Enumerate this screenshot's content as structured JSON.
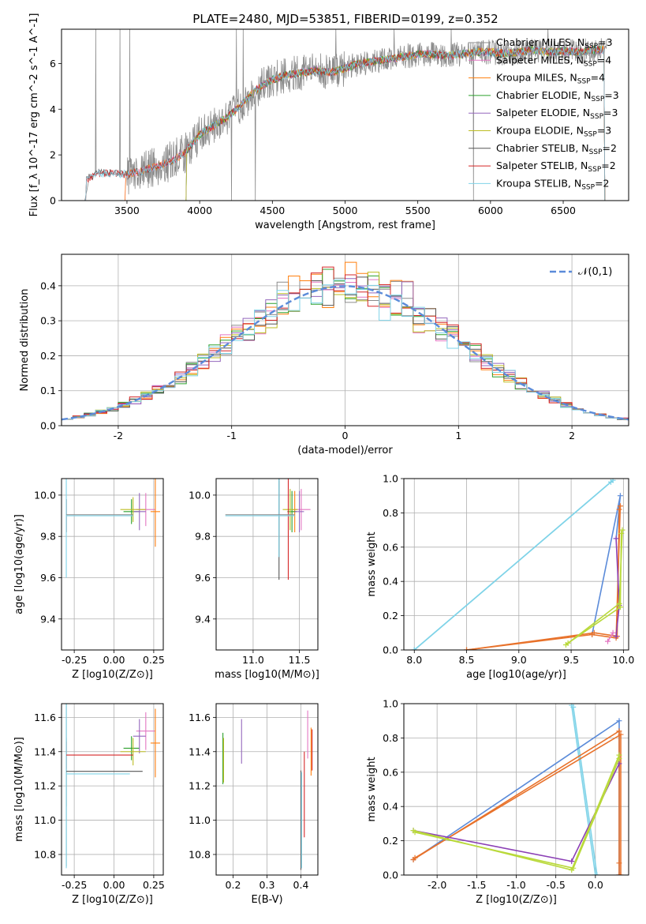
{
  "figure_title": "PLATE=2480, MJD=53851, FIBERID=0199, z=0.352",
  "colors": {
    "Chabrier MILES": "#8c8c8c",
    "Salpeter MILES": "#e377c2",
    "Kroupa MILES": "#ff7f0e",
    "Chabrier ELODIE": "#2ca02c",
    "Salpeter ELODIE": "#9467bd",
    "Kroupa ELODIE": "#bcbd22",
    "Chabrier STELIB": "#555555",
    "Salpeter STELIB": "#d62728",
    "Kroupa STELIB": "#7fd3e8",
    "normal_curve": "#5b8bd9",
    "weights_blue": "#5b8bd9",
    "weights_orange": "#e8722b",
    "weights_purple": "#8b3fb5",
    "weights_yellow": "#b9d93a",
    "weights_cyan": "#7fd3e8"
  },
  "chart_data": [
    {
      "id": "spectrum",
      "type": "line",
      "title": "PLATE=2480, MJD=53851, FIBERID=0199, z=0.352",
      "xlabel": "wavelength [Angstrom, rest frame]",
      "ylabel": "Flux [f_λ 10^-17 erg cm^-2 s^-1 A^-1]",
      "xlim": [
        3050,
        6950
      ],
      "ylim": [
        0,
        7.5
      ],
      "xticks": [
        3500,
        4000,
        4500,
        5000,
        5500,
        6000,
        6500
      ],
      "yticks": [
        0,
        2,
        4,
        6
      ],
      "grid": false,
      "legend_position": "top-right",
      "legend": [
        "Chabrier MILES, N_SSP=3",
        "Salpeter MILES, N_SSP=4",
        "Kroupa MILES, N_SSP=4",
        "Chabrier ELODIE, N_SSP=3",
        "Salpeter ELODIE, N_SSP=3",
        "Kroupa ELODIE, N_SSP=3",
        "Chabrier STELIB, N_SSP=2",
        "Salpeter STELIB, N_SSP=2",
        "Kroupa STELIB, N_SSP=2"
      ],
      "data_start_angstrom": 3210,
      "data_end_angstrom": 6800,
      "continuum": {
        "x": [
          3210,
          3300,
          3400,
          3500,
          3600,
          3700,
          3800,
          3900,
          4000,
          4100,
          4200,
          4300,
          4400,
          4500,
          4600,
          4700,
          4800,
          4900,
          5000,
          5100,
          5200,
          5300,
          5400,
          5500,
          5600,
          5700,
          5800,
          5900,
          6000,
          6100,
          6200,
          6300,
          6400,
          6500,
          6600,
          6700,
          6800
        ],
        "y": [
          0.9,
          1.2,
          1.2,
          1.15,
          1.3,
          1.5,
          1.7,
          2.1,
          2.9,
          3.3,
          3.7,
          4.3,
          4.9,
          5.3,
          5.5,
          5.6,
          5.7,
          5.6,
          5.8,
          6.0,
          6.1,
          6.2,
          6.3,
          6.4,
          6.4,
          6.35,
          6.4,
          6.5,
          6.5,
          6.45,
          6.5,
          6.6,
          6.5,
          6.55,
          6.5,
          6.6,
          6.6
        ]
      }
    },
    {
      "id": "residuals",
      "type": "line",
      "xlabel": "(data-model)/error",
      "ylabel": "Normed distribution",
      "xlim": [
        -2.5,
        2.5
      ],
      "ylim": [
        0,
        0.49
      ],
      "xticks": [
        -2,
        -1,
        0,
        1,
        2
      ],
      "yticks": [
        0.0,
        0.1,
        0.2,
        0.3,
        0.4
      ],
      "grid": true,
      "legend_position": "top-right",
      "legend": [
        "𝒩(0,1)"
      ],
      "bin_width": 0.1
    },
    {
      "id": "age_vs_Z",
      "type": "scatter",
      "xlabel": "Z [log10(Z/Z⊙)]",
      "ylabel": "age  [log10(age/yr)]",
      "xlim": [
        -0.33,
        0.31
      ],
      "ylim": [
        9.25,
        10.08
      ],
      "xticks": [
        -0.25,
        0.0,
        0.25
      ],
      "yticks": [
        9.4,
        9.6,
        9.8,
        10.0
      ],
      "grid": true,
      "points": [
        {
          "x": -0.3,
          "y": 9.9,
          "xerr": 0.0,
          "yerr": 0.08,
          "series": "Chabrier MILES"
        },
        {
          "x": 0.2,
          "y": 9.93,
          "xerr": 0.06,
          "yerr": 0.08,
          "series": "Salpeter MILES"
        },
        {
          "x": 0.26,
          "y": 9.92,
          "xerr": 0.03,
          "yerr": 0.17,
          "series": "Kroupa MILES"
        },
        {
          "x": 0.11,
          "y": 9.92,
          "xerr": 0.05,
          "yerr": 0.06,
          "series": "Chabrier ELODIE"
        },
        {
          "x": 0.16,
          "y": 9.92,
          "xerr": 0.04,
          "yerr": 0.09,
          "series": "Salpeter ELODIE"
        },
        {
          "x": 0.12,
          "y": 9.93,
          "xerr": 0.08,
          "yerr": 0.06,
          "series": "Kroupa ELODIE"
        },
        {
          "x": -0.3,
          "y": 9.9,
          "xerr": 0.0,
          "yerr": 0.08,
          "series": "Chabrier STELIB"
        },
        {
          "x": -0.3,
          "y": 9.9,
          "xerr": 0.0,
          "yerr": 0.08,
          "series": "Salpeter STELIB"
        },
        {
          "x": -0.3,
          "y": 9.9,
          "xerr": 0.0,
          "yerr": 0.3,
          "series": "Kroupa STELIB"
        }
      ]
    },
    {
      "id": "age_vs_mass",
      "type": "scatter",
      "xlabel": "mass [log10(M/M⊙)]",
      "ylabel": "",
      "xlim": [
        10.6,
        11.7
      ],
      "ylim": [
        9.25,
        10.08
      ],
      "xticks": [
        11.0,
        11.5
      ],
      "yticks": [
        9.4,
        9.6,
        9.8,
        10.0
      ],
      "grid": true,
      "points": [
        {
          "x": 11.28,
          "y": 9.9,
          "xerr": 0.0,
          "yerr": 0.2,
          "series": "Chabrier MILES"
        },
        {
          "x": 11.52,
          "y": 9.93,
          "xerr": 0.1,
          "yerr": 0.1,
          "series": "Salpeter MILES"
        },
        {
          "x": 11.45,
          "y": 9.92,
          "xerr": 0.02,
          "yerr": 0.1,
          "series": "Kroupa MILES"
        },
        {
          "x": 11.42,
          "y": 9.92,
          "xerr": 0.05,
          "yerr": 0.1,
          "series": "Chabrier ELODIE"
        },
        {
          "x": 11.5,
          "y": 9.92,
          "xerr": 0.05,
          "yerr": 0.1,
          "series": "Salpeter ELODIE"
        },
        {
          "x": 11.4,
          "y": 9.93,
          "xerr": 0.08,
          "yerr": 0.1,
          "series": "Kroupa ELODIE"
        },
        {
          "x": 11.28,
          "y": 9.9,
          "xerr": 0.0,
          "yerr": 0.31,
          "series": "Chabrier STELIB"
        },
        {
          "x": 11.38,
          "y": 9.9,
          "xerr": 0.0,
          "yerr": 0.31,
          "series": "Salpeter STELIB"
        },
        {
          "x": 11.28,
          "y": 9.9,
          "xerr": 0.0,
          "yerr": 0.2,
          "series": "Kroupa STELIB"
        }
      ]
    },
    {
      "id": "weights_vs_age",
      "type": "line",
      "xlabel": "age  [log10(age/yr)]",
      "ylabel": "mass weight",
      "xlim": [
        7.9,
        10.05
      ],
      "ylim": [
        0,
        1.0
      ],
      "xticks": [
        8.0,
        8.5,
        9.0,
        9.5,
        10.0
      ],
      "yticks": [
        0.0,
        0.2,
        0.4,
        0.6,
        0.8,
        1.0
      ],
      "grid": true,
      "series": [
        {
          "color": "weights_cyan",
          "x": [
            8.0,
            9.9
          ],
          "y": [
            0.0,
            0.99
          ]
        },
        {
          "color": "weights_cyan",
          "x": [
            8.0,
            9.88
          ],
          "y": [
            0.0,
            0.98
          ]
        },
        {
          "color": "weights_blue",
          "x": [
            9.7,
            9.97,
            9.93
          ],
          "y": [
            0.09,
            0.9,
            0.65
          ]
        },
        {
          "color": "weights_orange",
          "x": [
            8.5,
            9.7,
            9.93,
            9.97
          ],
          "y": [
            0.0,
            0.09,
            0.07,
            0.84
          ]
        },
        {
          "color": "weights_orange",
          "x": [
            8.5,
            9.72,
            9.94,
            9.96
          ],
          "y": [
            0.0,
            0.1,
            0.08,
            0.82
          ]
        },
        {
          "color": "weights_purple",
          "x": [
            9.93,
            9.96,
            9.93
          ],
          "y": [
            0.65,
            0.26,
            0.08
          ]
        },
        {
          "color": "weights_yellow",
          "x": [
            9.45,
            9.96,
            9.99
          ],
          "y": [
            0.03,
            0.27,
            0.7
          ]
        },
        {
          "color": "weights_yellow",
          "x": [
            9.47,
            9.97,
            9.98
          ],
          "y": [
            0.04,
            0.25,
            0.68
          ]
        },
        {
          "color": "Salpeter MILES",
          "x": [
            9.85,
            9.9
          ],
          "y": [
            0.05,
            0.1
          ]
        }
      ]
    },
    {
      "id": "mass_vs_Z",
      "type": "scatter",
      "xlabel": "Z [log10(Z/Z⊙)]",
      "ylabel": "mass [log10(M/M⊙)]",
      "xlim": [
        -0.33,
        0.31
      ],
      "ylim": [
        10.68,
        11.68
      ],
      "xticks": [
        -0.25,
        0.0,
        0.25
      ],
      "yticks": [
        10.8,
        11.0,
        11.2,
        11.4,
        11.6
      ],
      "grid": true,
      "points": [
        {
          "x": -0.3,
          "y": 11.28,
          "xerr": 0.0,
          "yerr": 0.2,
          "series": "Chabrier MILES"
        },
        {
          "x": 0.2,
          "y": 11.52,
          "xerr": 0.06,
          "yerr": 0.11,
          "series": "Salpeter MILES"
        },
        {
          "x": 0.26,
          "y": 11.45,
          "xerr": 0.03,
          "yerr": 0.2,
          "series": "Kroupa MILES"
        },
        {
          "x": 0.11,
          "y": 11.42,
          "xerr": 0.05,
          "yerr": 0.07,
          "series": "Chabrier ELODIE"
        },
        {
          "x": 0.16,
          "y": 11.49,
          "xerr": 0.04,
          "yerr": 0.1,
          "series": "Salpeter ELODIE"
        },
        {
          "x": 0.12,
          "y": 11.4,
          "xerr": 0.08,
          "yerr": 0.08,
          "series": "Kroupa ELODIE"
        },
        {
          "x": -0.3,
          "y": 11.28,
          "xerr": 0.0,
          "yerr": 0.55,
          "series": "Chabrier STELIB"
        },
        {
          "x": -0.3,
          "y": 11.38,
          "xerr": 0.0,
          "yerr": 0.08,
          "series": "Salpeter STELIB"
        },
        {
          "x": -0.3,
          "y": 11.27,
          "xerr": 0.0,
          "yerr": 0.55,
          "series": "Kroupa STELIB"
        }
      ]
    },
    {
      "id": "mass_vs_ebv",
      "type": "scatter",
      "xlabel": "E(B-V)",
      "ylabel": "",
      "xlim": [
        0.15,
        0.45
      ],
      "ylim": [
        10.68,
        11.68
      ],
      "xticks": [
        0.2,
        0.3,
        0.4
      ],
      "yticks": [
        10.8,
        11.0,
        11.2,
        11.4,
        11.6
      ],
      "grid": true,
      "points": [
        {
          "x": 0.17,
          "y": 11.36,
          "xerr": 0.0,
          "yerr": 0.15,
          "series": "Chabrier ELODIE"
        },
        {
          "x": 0.172,
          "y": 11.35,
          "xerr": 0.0,
          "yerr": 0.13,
          "series": "Kroupa ELODIE"
        },
        {
          "x": 0.225,
          "y": 11.46,
          "xerr": 0.0,
          "yerr": 0.13,
          "series": "Salpeter ELODIE"
        },
        {
          "x": 0.4,
          "y": 11.0,
          "xerr": 0.0,
          "yerr": 0.29,
          "series": "Chabrier STELIB"
        },
        {
          "x": 0.402,
          "y": 11.0,
          "xerr": 0.0,
          "yerr": 0.28,
          "series": "Kroupa STELIB"
        },
        {
          "x": 0.41,
          "y": 11.15,
          "xerr": 0.0,
          "yerr": 0.25,
          "series": "Salpeter STELIB"
        },
        {
          "x": 0.42,
          "y": 11.5,
          "xerr": 0.0,
          "yerr": 0.14,
          "series": "Salpeter MILES"
        },
        {
          "x": 0.43,
          "y": 11.4,
          "xerr": 0.0,
          "yerr": 0.14,
          "series": "Kroupa MILES"
        },
        {
          "x": 0.433,
          "y": 11.41,
          "xerr": 0.0,
          "yerr": 0.12,
          "series": "Salpeter STELIB"
        }
      ]
    },
    {
      "id": "weights_vs_Z",
      "type": "line",
      "xlabel": "Z [log10(Z/Z⊙)]",
      "ylabel": "mass weight",
      "xlim": [
        -2.42,
        0.42
      ],
      "ylim": [
        0,
        1.0
      ],
      "xticks": [
        -2.0,
        -1.5,
        -1.0,
        -0.5,
        0.0
      ],
      "yticks": [
        0.0,
        0.2,
        0.4,
        0.6,
        0.8,
        1.0
      ],
      "grid": true,
      "series": [
        {
          "color": "weights_cyan",
          "x": [
            -0.3,
            0.0
          ],
          "y": [
            0.99,
            0.0
          ]
        },
        {
          "color": "weights_cyan",
          "x": [
            -0.28,
            0.02
          ],
          "y": [
            0.98,
            0.0
          ]
        },
        {
          "color": "weights_blue",
          "x": [
            -2.3,
            0.3,
            0.3
          ],
          "y": [
            0.09,
            0.9,
            0.0
          ]
        },
        {
          "color": "weights_orange",
          "x": [
            -2.3,
            0.3,
            0.3,
            0.3
          ],
          "y": [
            0.09,
            0.84,
            0.07,
            0.0
          ]
        },
        {
          "color": "weights_orange",
          "x": [
            -2.28,
            0.32,
            0.32
          ],
          "y": [
            0.1,
            0.82,
            0.0
          ]
        },
        {
          "color": "weights_purple",
          "x": [
            -2.3,
            -0.3,
            0.3
          ],
          "y": [
            0.26,
            0.08,
            0.65
          ]
        },
        {
          "color": "weights_yellow",
          "x": [
            -2.3,
            -0.3,
            0.3
          ],
          "y": [
            0.26,
            0.03,
            0.7
          ]
        },
        {
          "color": "weights_yellow",
          "x": [
            -2.28,
            -0.28,
            0.3
          ],
          "y": [
            0.25,
            0.04,
            0.68
          ]
        }
      ]
    }
  ]
}
